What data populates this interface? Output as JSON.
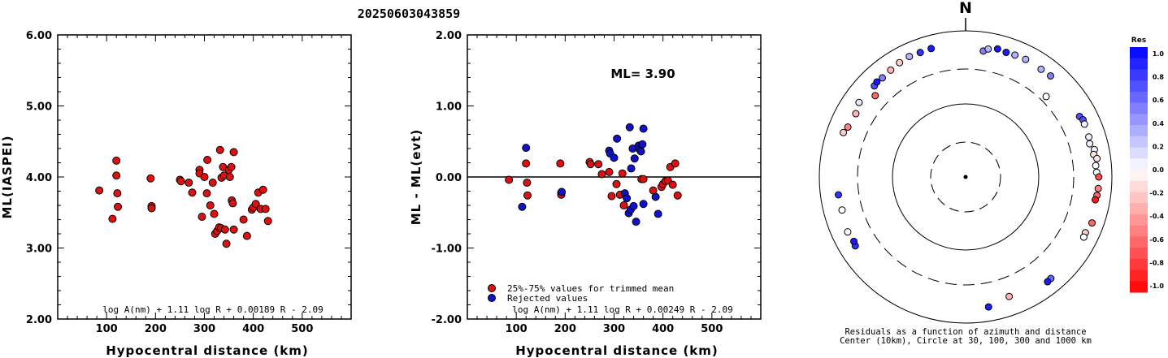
{
  "title": "20250603043859",
  "chart_data": [
    {
      "type": "scatter",
      "xlabel": "Hypocentral distance (km)",
      "ylabel": "ML(IASPEI)",
      "xlim": [
        0,
        600
      ],
      "ylim": [
        2.0,
        6.0
      ],
      "xticks": [
        "100",
        "200",
        "300",
        "400",
        "500"
      ],
      "yticks": [
        "2.00",
        "3.00",
        "4.00",
        "5.00",
        "6.00"
      ],
      "formula": "log A(nm) + 1.11 log R + 0.00189 R - 2.09",
      "points": [
        [
          85,
          3.81
        ],
        [
          112,
          3.41
        ],
        [
          120,
          4.23
        ],
        [
          120,
          4.02
        ],
        [
          122,
          3.77
        ],
        [
          123,
          3.58
        ],
        [
          190,
          3.98
        ],
        [
          192,
          3.59
        ],
        [
          192,
          3.56
        ],
        [
          250,
          3.96
        ],
        [
          252,
          3.94
        ],
        [
          268,
          3.92
        ],
        [
          275,
          3.78
        ],
        [
          290,
          4.1
        ],
        [
          290,
          4.05
        ],
        [
          295,
          3.44
        ],
        [
          300,
          4.0
        ],
        [
          305,
          3.77
        ],
        [
          306,
          4.24
        ],
        [
          312,
          3.6
        ],
        [
          317,
          3.92
        ],
        [
          320,
          3.48
        ],
        [
          322,
          3.2
        ],
        [
          326,
          3.24
        ],
        [
          330,
          3.29
        ],
        [
          332,
          4.38
        ],
        [
          334,
          3.28
        ],
        [
          335,
          3.99
        ],
        [
          338,
          4.14
        ],
        [
          340,
          4.02
        ],
        [
          342,
          3.26
        ],
        [
          345,
          3.06
        ],
        [
          350,
          4.1
        ],
        [
          352,
          4.0
        ],
        [
          355,
          4.14
        ],
        [
          356,
          3.67
        ],
        [
          358,
          3.63
        ],
        [
          360,
          4.35
        ],
        [
          360,
          3.26
        ],
        [
          380,
          3.4
        ],
        [
          387,
          3.17
        ],
        [
          397,
          3.54
        ],
        [
          400,
          3.57
        ],
        [
          405,
          3.62
        ],
        [
          410,
          3.78
        ],
        [
          415,
          3.55
        ],
        [
          420,
          3.82
        ],
        [
          425,
          3.55
        ],
        [
          430,
          3.38
        ]
      ]
    },
    {
      "type": "scatter",
      "xlabel": "Hypocentral distance (km)",
      "ylabel": "ML - ML(evt)",
      "xlim": [
        0,
        600
      ],
      "ylim": [
        -2.0,
        2.0
      ],
      "xticks": [
        "100",
        "200",
        "300",
        "400",
        "500"
      ],
      "yticks": [
        "-2.00",
        "-1.00",
        "0.00",
        "1.00",
        "2.00"
      ],
      "annotation": "ML= 3.90",
      "formula": "log A(nm) + 1.11 log R + 0.00249 R - 2.09",
      "legend": [
        "25%-75% values for trimmed mean",
        "Rejected values"
      ],
      "series": [
        {
          "name": "25%-75% values for trimmed mean",
          "color": "#dd1111",
          "points": [
            [
              85,
              -0.04
            ],
            [
              120,
              0.19
            ],
            [
              122,
              -0.08
            ],
            [
              123,
              -0.26
            ],
            [
              190,
              0.19
            ],
            [
              192,
              -0.22
            ],
            [
              192,
              -0.25
            ],
            [
              250,
              0.21
            ],
            [
              252,
              0.18
            ],
            [
              268,
              0.18
            ],
            [
              275,
              0.04
            ],
            [
              290,
              0.07
            ],
            [
              295,
              -0.27
            ],
            [
              305,
              -0.1
            ],
            [
              312,
              -0.25
            ],
            [
              317,
              0.05
            ],
            [
              320,
              -0.4
            ],
            [
              356,
              -0.03
            ],
            [
              360,
              -0.03
            ],
            [
              380,
              -0.19
            ],
            [
              397,
              -0.14
            ],
            [
              400,
              -0.1
            ],
            [
              405,
              -0.06
            ],
            [
              410,
              -0.05
            ],
            [
              415,
              0.14
            ],
            [
              420,
              -0.11
            ],
            [
              425,
              0.19
            ],
            [
              430,
              -0.26
            ]
          ]
        },
        {
          "name": "Rejected values",
          "color": "#1111cc",
          "points": [
            [
              112,
              -0.42
            ],
            [
              120,
              0.41
            ],
            [
              193,
              -0.21
            ],
            [
              290,
              0.37
            ],
            [
              292,
              0.33
            ],
            [
              300,
              0.27
            ],
            [
              306,
              0.54
            ],
            [
              322,
              -0.23
            ],
            [
              326,
              -0.3
            ],
            [
              330,
              -0.51
            ],
            [
              332,
              0.7
            ],
            [
              334,
              -0.46
            ],
            [
              335,
              0.12
            ],
            [
              338,
              0.4
            ],
            [
              340,
              -0.41
            ],
            [
              342,
              0.26
            ],
            [
              345,
              -0.63
            ],
            [
              350,
              0.44
            ],
            [
              352,
              0.39
            ],
            [
              355,
              0.36
            ],
            [
              358,
              0.46
            ],
            [
              360,
              0.68
            ],
            [
              360,
              -0.38
            ],
            [
              385,
              -0.28
            ],
            [
              390,
              -0.52
            ]
          ]
        }
      ]
    },
    {
      "type": "polar",
      "north_label": "N",
      "caption_line1": "Residuals as a function of azimuth and distance",
      "caption_line2": "Center (10km), Circle at 30, 100, 300 and 1000 km",
      "colorbar_title": "Res",
      "colorbar_ticks": [
        "1.0",
        "0.8",
        "0.6",
        "0.4",
        "0.2",
        "0.0",
        "-0.2",
        "-0.4",
        "-0.6",
        "-0.8",
        "-1.0"
      ],
      "points": [
        [
          8,
          550,
          0.5
        ],
        [
          10,
          600,
          0.3
        ],
        [
          14,
          640,
          0.9
        ],
        [
          18,
          620,
          0.9
        ],
        [
          22,
          630,
          0.3
        ],
        [
          27,
          640,
          0.3
        ],
        [
          35,
          630,
          0.3
        ],
        [
          40,
          640,
          0.5
        ],
        [
          45,
          360,
          0.0
        ],
        [
          62,
          580,
          0.7
        ],
        [
          64,
          610,
          0.7
        ],
        [
          66,
          600,
          0.05
        ],
        [
          72,
          590,
          0.05
        ],
        [
          75,
          570,
          0.05
        ],
        [
          78,
          630,
          0.05
        ],
        [
          80,
          600,
          -0.1
        ],
        [
          82,
          650,
          -0.1
        ],
        [
          85,
          610,
          0.0
        ],
        [
          88,
          620,
          0.0
        ],
        [
          90,
          660,
          -0.7
        ],
        [
          95,
          660,
          -0.5
        ],
        [
          98,
          650,
          -0.6
        ],
        [
          100,
          630,
          -0.9
        ],
        [
          110,
          690,
          -0.6
        ],
        [
          115,
          640,
          -0.2
        ],
        [
          117,
          650,
          0.0
        ],
        [
          140,
          650,
          0.6
        ],
        [
          142,
          660,
          0.9
        ],
        [
          160,
          550,
          -0.3
        ],
        [
          170,
          640,
          0.9
        ],
        [
          238,
          600,
          0.8
        ],
        [
          240,
          580,
          0.9
        ],
        [
          245,
          600,
          0.0
        ],
        [
          255,
          560,
          0.0
        ],
        [
          262,
          570,
          0.8
        ],
        [
          290,
          600,
          -0.2
        ],
        [
          293,
          560,
          -0.5
        ],
        [
          300,
          540,
          -0.3
        ],
        [
          305,
          600,
          0.1
        ],
        [
          312,
          460,
          -0.6
        ],
        [
          315,
          580,
          0.7
        ],
        [
          317,
          600,
          0.9
        ],
        [
          320,
          590,
          0.5
        ],
        [
          325,
          610,
          -0.3
        ],
        [
          330,
          640,
          -0.2
        ],
        [
          335,
          660,
          0.3
        ],
        [
          340,
          650,
          0.8
        ],
        [
          345,
          660,
          0.9
        ]
      ]
    }
  ]
}
